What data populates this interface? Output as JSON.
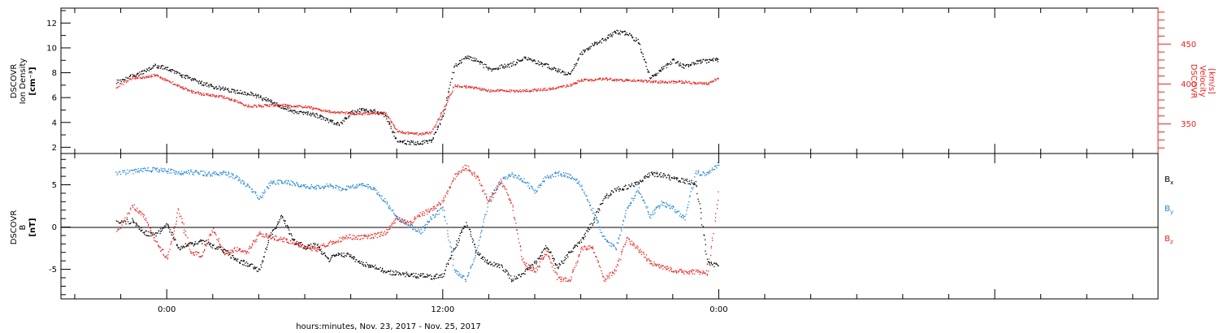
{
  "xaxis": {
    "label": "hours:minutes, Nov. 23, 2017 - Nov. 25, 2017",
    "ticks": [
      "0:00",
      "12:00",
      "0:00"
    ]
  },
  "colors": {
    "density": "#000000",
    "velocity": "#e8201c",
    "bx": "#000000",
    "by": "#1f86d6",
    "bz": "#e8201c"
  },
  "chart_data": [
    {
      "type": "line",
      "title": "",
      "left_axis": {
        "label_lines": [
          "DSCOVR",
          "Ion Density",
          "[cm⁻³]"
        ],
        "ylim": [
          1.5,
          13.2
        ],
        "ticks": [
          2,
          4,
          6,
          8,
          10,
          12
        ]
      },
      "right_axis": {
        "label_lines": [
          "DSCOVR",
          "Velocity",
          "[km/s]"
        ],
        "ylim": [
          313,
          495
        ],
        "ticks": [
          350,
          400,
          450
        ]
      },
      "x_hours": [
        -2.2,
        -1.5,
        -1,
        -0.5,
        0,
        0.5,
        1,
        1.5,
        2,
        2.5,
        3,
        3.5,
        4,
        4.5,
        5,
        5.5,
        6,
        6.5,
        7,
        7.5,
        8,
        8.5,
        9,
        9.5,
        10,
        10.5,
        11,
        11.5,
        12,
        12.5,
        13,
        13.5,
        14,
        14.5,
        15,
        15.5,
        16,
        16.5,
        17,
        17.5,
        18,
        18.5,
        19,
        19.5,
        20,
        20.5,
        21,
        21.5,
        22,
        22.5,
        23,
        23.5,
        24
      ],
      "series": [
        {
          "axis": "left",
          "color_key": "density",
          "values": [
            7.3,
            7.8,
            8.1,
            8.6,
            8.4,
            7.9,
            7.6,
            7.2,
            6.9,
            6.7,
            6.5,
            6.4,
            6.1,
            5.7,
            5.3,
            4.9,
            4.8,
            4.6,
            4.2,
            3.9,
            4.8,
            5.1,
            4.9,
            4.6,
            2.5,
            2.4,
            2.4,
            2.5,
            4.6,
            8.6,
            9.3,
            9.0,
            8.3,
            8.5,
            8.7,
            9.2,
            8.9,
            8.6,
            8.2,
            7.9,
            9.6,
            10.3,
            10.7,
            11.3,
            11.2,
            10.5,
            7.6,
            8.3,
            9.0,
            8.5,
            8.9,
            9.0,
            9.1
          ]
        },
        {
          "axis": "right",
          "color_key": "velocity",
          "values": [
            397,
            408,
            409,
            412,
            405,
            398,
            392,
            388,
            386,
            384,
            379,
            373,
            373,
            374,
            374,
            373,
            372,
            369,
            366,
            365,
            364,
            363,
            364,
            364,
            341,
            339,
            338,
            340,
            368,
            398,
            397,
            395,
            392,
            393,
            392,
            392,
            393,
            394,
            396,
            399,
            405,
            406,
            407,
            406,
            405,
            405,
            404,
            403,
            403,
            403,
            402,
            401,
            408
          ]
        }
      ]
    },
    {
      "type": "line",
      "title": "",
      "left_axis": {
        "label_lines": [
          "DSCOVR",
          "B",
          "[nT]"
        ],
        "ylim": [
          -8.5,
          8.7
        ],
        "ticks": [
          5,
          0,
          -5
        ]
      },
      "x_hours": [
        -2.2,
        -1.5,
        -1,
        -0.5,
        0,
        0.5,
        1,
        1.5,
        2,
        2.5,
        3,
        3.5,
        4,
        4.5,
        5,
        5.5,
        6,
        6.5,
        7,
        7.5,
        8,
        8.5,
        9,
        9.5,
        10,
        10.5,
        11,
        11.5,
        12,
        12.5,
        13,
        13.5,
        14,
        14.5,
        15,
        15.5,
        16,
        16.5,
        17,
        17.5,
        18,
        18.5,
        19,
        19.5,
        20,
        20.5,
        21,
        21.5,
        22,
        22.5,
        23,
        23.5,
        24
      ],
      "series": [
        {
          "name": "Bx",
          "label": "B",
          "sub": "x",
          "color_key": "bx",
          "values": [
            0.5,
            0.8,
            -0.6,
            -0.9,
            0.3,
            -2.4,
            -2.0,
            -1.6,
            -2.2,
            -2.8,
            -3.9,
            -4.3,
            -5.1,
            -0.9,
            1.3,
            -1.6,
            -2.3,
            -2.1,
            -3.8,
            -3.1,
            -3.4,
            -4.3,
            -4.6,
            -5.3,
            -5.4,
            -5.6,
            -5.7,
            -5.9,
            -5.7,
            -2.4,
            0.5,
            -3.1,
            -4.2,
            -4.5,
            -6.2,
            -5.3,
            -4.2,
            -2.3,
            -4.7,
            -3.0,
            -1.6,
            0.6,
            3.4,
            4.5,
            4.8,
            5.3,
            6.4,
            6.2,
            5.8,
            5.5,
            5.2,
            -4.3,
            -4.5
          ]
        },
        {
          "name": "By",
          "label": "B",
          "sub": "y",
          "color_key": "by",
          "values": [
            6.4,
            6.6,
            6.9,
            6.8,
            6.7,
            6.5,
            6.6,
            6.4,
            6.3,
            6.5,
            5.9,
            5.0,
            3.4,
            5.3,
            5.4,
            5.2,
            4.9,
            4.7,
            5.0,
            4.6,
            4.8,
            5.0,
            4.6,
            3.1,
            1.2,
            0.3,
            -0.6,
            1.1,
            2.3,
            -5.1,
            -6.2,
            -2.4,
            3.4,
            5.4,
            6.3,
            5.6,
            4.3,
            6.0,
            6.4,
            6.1,
            5.1,
            2.0,
            -1.3,
            -2.5,
            2.1,
            4.5,
            1.3,
            2.9,
            2.3,
            1.1,
            6.5,
            6.3,
            7.6
          ]
        },
        {
          "name": "Bz",
          "label": "B",
          "sub": "z",
          "color_key": "bz",
          "values": [
            -0.5,
            2.6,
            1.3,
            -1.6,
            -3.7,
            2.1,
            -2.8,
            -3.3,
            -0.2,
            -3.1,
            -2.6,
            -2.9,
            -0.7,
            -1.1,
            -1.4,
            -1.8,
            -2.3,
            -2.6,
            -1.9,
            -1.4,
            -1.1,
            -1.2,
            -1.0,
            -0.6,
            1.1,
            0.4,
            1.5,
            2.1,
            3.1,
            6.0,
            7.2,
            5.9,
            2.9,
            5.6,
            2.6,
            -4.3,
            -5.2,
            -2.8,
            -6.1,
            -6.3,
            -2.5,
            -2.4,
            -6.2,
            -5.0,
            -1.3,
            -2.6,
            -4.1,
            -4.6,
            -5.0,
            -5.3,
            -5.2,
            -5.4,
            4.5
          ]
        }
      ]
    }
  ]
}
